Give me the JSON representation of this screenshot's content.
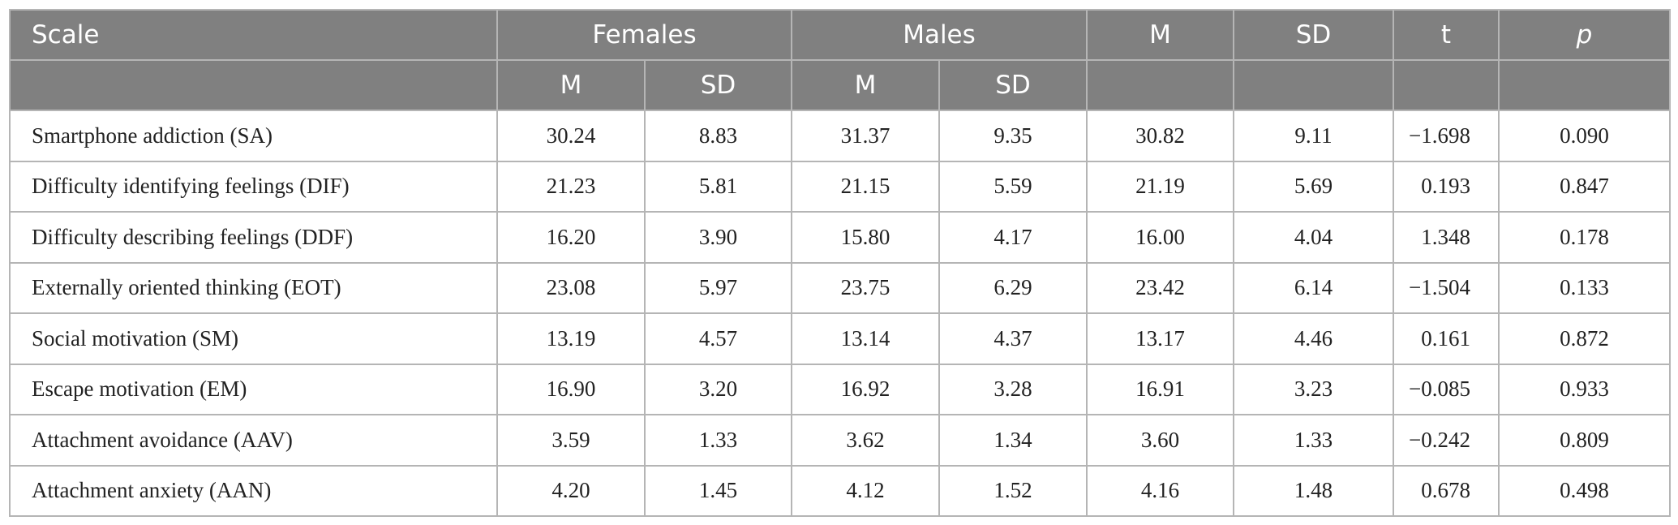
{
  "table": {
    "headers": {
      "scale": "Scale",
      "females": "Females",
      "males": "Males",
      "m": "M",
      "sd": "SD",
      "t": "t",
      "p": "p",
      "sub_m": "M",
      "sub_sd": "SD"
    },
    "rows": [
      {
        "scale": "Smartphone addiction (SA)",
        "f_m": "30.24",
        "f_sd": "8.83",
        "m_m": "31.37",
        "m_sd": "9.35",
        "m": "30.82",
        "sd": "9.11",
        "t": "−1.698",
        "p": "0.090"
      },
      {
        "scale": "Difficulty identifying feelings (DIF)",
        "f_m": "21.23",
        "f_sd": "5.81",
        "m_m": "21.15",
        "m_sd": "5.59",
        "m": "21.19",
        "sd": "5.69",
        "t": "0.193",
        "p": "0.847"
      },
      {
        "scale": "Difficulty describing feelings (DDF)",
        "f_m": "16.20",
        "f_sd": "3.90",
        "m_m": "15.80",
        "m_sd": "4.17",
        "m": "16.00",
        "sd": "4.04",
        "t": "1.348",
        "p": "0.178"
      },
      {
        "scale": "Externally oriented thinking (EOT)",
        "f_m": "23.08",
        "f_sd": "5.97",
        "m_m": "23.75",
        "m_sd": "6.29",
        "m": "23.42",
        "sd": "6.14",
        "t": "−1.504",
        "p": "0.133"
      },
      {
        "scale": "Social motivation (SM)",
        "f_m": "13.19",
        "f_sd": "4.57",
        "m_m": "13.14",
        "m_sd": "4.37",
        "m": "13.17",
        "sd": "4.46",
        "t": "0.161",
        "p": "0.872"
      },
      {
        "scale": "Escape motivation (EM)",
        "f_m": "16.90",
        "f_sd": "3.20",
        "m_m": "16.92",
        "m_sd": "3.28",
        "m": "16.91",
        "sd": "3.23",
        "t": "−0.085",
        "p": "0.933"
      },
      {
        "scale": "Attachment avoidance (AAV)",
        "f_m": "3.59",
        "f_sd": "1.33",
        "m_m": "3.62",
        "m_sd": "1.34",
        "m": "3.60",
        "sd": "1.33",
        "t": "−0.242",
        "p": "0.809"
      },
      {
        "scale": "Attachment anxiety (AAN)",
        "f_m": "4.20",
        "f_sd": "1.45",
        "m_m": "4.12",
        "m_sd": "1.52",
        "m": "4.16",
        "sd": "1.48",
        "t": "0.678",
        "p": "0.498"
      }
    ]
  },
  "colors": {
    "header_bg": "#808080",
    "header_text": "#ffffff",
    "grid": "#b5b5b5",
    "body_text": "#222222"
  }
}
